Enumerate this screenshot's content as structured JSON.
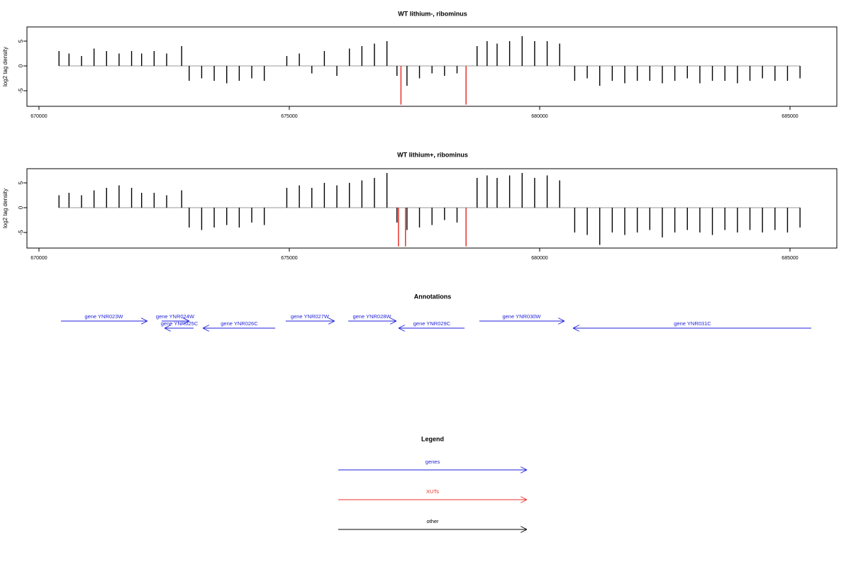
{
  "chart_data": [
    {
      "type": "bar",
      "title": "WT lithium-, ribominus",
      "ylabel": "log2 tag density",
      "xlim": [
        669760,
        685935
      ],
      "ylim": [
        -8.14,
        7.86
      ],
      "xticks": [
        670000,
        675000,
        680000,
        685000
      ],
      "yticks": [
        -5,
        0,
        5
      ],
      "series": [
        {
          "color": "#000000",
          "x": [
            670400,
            670600,
            670850,
            671100,
            671350,
            671600,
            671850,
            672050,
            672300,
            672550,
            672850,
            673000,
            673250,
            673500,
            673750,
            674000,
            674250,
            674500,
            674950,
            675200,
            675450,
            675700,
            675950,
            676200,
            676450,
            676700,
            676950,
            677150,
            677350,
            677600,
            677850,
            678100,
            678350,
            678750,
            678950,
            679150,
            679400,
            679650,
            679900,
            680150,
            680400,
            680700,
            680950,
            681200,
            681450,
            681700,
            681950,
            682200,
            682450,
            682700,
            682950,
            683200,
            683450,
            683700,
            683950,
            684200,
            684450,
            684700,
            684950,
            685200
          ],
          "values": [
            3,
            2.5,
            2,
            3.5,
            3,
            2.5,
            3,
            2.5,
            3,
            2.5,
            4,
            -3,
            -2.5,
            -3,
            -3.5,
            -3,
            -2.5,
            -3,
            2,
            2.5,
            -1.5,
            3,
            -2,
            3.5,
            4,
            4.5,
            5,
            -2,
            -4,
            -2.5,
            -1.5,
            -2,
            -1.5,
            4,
            5,
            4.5,
            5,
            6,
            5,
            5,
            4.5,
            -3,
            -2.5,
            -4,
            -3,
            -3.5,
            -3,
            -3,
            -3.5,
            -3,
            -2.5,
            -3.5,
            -3,
            -3,
            -3.5,
            -3,
            -2.5,
            -3,
            -3,
            -2.5
          ]
        },
        {
          "color": "#e8312a",
          "x": [
            677230,
            678530
          ],
          "values": [
            -7.8,
            -7.8
          ]
        }
      ]
    },
    {
      "type": "bar",
      "title": "WT lithium+, ribominus",
      "ylabel": "log2 tag density",
      "xlim": [
        669760,
        685935
      ],
      "ylim": [
        -8.14,
        7.86
      ],
      "xticks": [
        670000,
        675000,
        680000,
        685000
      ],
      "yticks": [
        -5,
        0,
        5
      ],
      "series": [
        {
          "color": "#000000",
          "x": [
            670400,
            670600,
            670850,
            671100,
            671350,
            671600,
            671850,
            672050,
            672300,
            672550,
            672850,
            673000,
            673250,
            673500,
            673750,
            674000,
            674250,
            674500,
            674950,
            675200,
            675450,
            675700,
            675950,
            676200,
            676450,
            676700,
            676950,
            677150,
            677350,
            677600,
            677850,
            678100,
            678350,
            678750,
            678950,
            679150,
            679400,
            679650,
            679900,
            680150,
            680400,
            680700,
            680950,
            681200,
            681450,
            681700,
            681950,
            682200,
            682450,
            682700,
            682950,
            683200,
            683450,
            683700,
            683950,
            684200,
            684450,
            684700,
            684950,
            685200
          ],
          "values": [
            2.5,
            3,
            2.5,
            3.5,
            4,
            4.5,
            4,
            3,
            3,
            2.5,
            3.5,
            -4,
            -4.5,
            -4,
            -3.5,
            -4,
            -3,
            -3.5,
            4,
            4.5,
            4,
            5,
            4.5,
            5,
            5.5,
            6,
            7,
            -3,
            -4.5,
            -4,
            -3.5,
            -2.5,
            -3,
            6,
            6.5,
            6,
            6.5,
            7,
            6,
            6.5,
            5.5,
            -5,
            -5.5,
            -7.5,
            -5,
            -5.5,
            -5,
            -4.5,
            -6,
            -5,
            -4.5,
            -5,
            -5.5,
            -4.5,
            -5,
            -4.5,
            -5,
            -4.5,
            -5,
            -4
          ]
        },
        {
          "color": "#e8312a",
          "x": [
            677180,
            677320,
            678530
          ],
          "values": [
            -7.8,
            -7.8,
            -7.8
          ]
        }
      ]
    }
  ],
  "annotations": {
    "title": "Annotations",
    "xlim": [
      669760,
      685935
    ],
    "color": "#1f1fdd",
    "genes": [
      {
        "label": "gene YNR023W",
        "start": 670439,
        "end": 672153,
        "strand": "+"
      },
      {
        "label": "gene YNR024W",
        "start": 672450,
        "end": 672989,
        "strand": "+"
      },
      {
        "label": "gene YNR025C",
        "start": 672521,
        "end": 673088,
        "strand": "-"
      },
      {
        "label": "gene YNR026C",
        "start": 673286,
        "end": 674717,
        "strand": "-"
      },
      {
        "label": "gene YNR027W",
        "start": 674929,
        "end": 675892,
        "strand": "+"
      },
      {
        "label": "gene YNR028W",
        "start": 676176,
        "end": 677125,
        "strand": "+"
      },
      {
        "label": "gene YNR029C",
        "start": 677195,
        "end": 678499,
        "strand": "-"
      },
      {
        "label": "gene YNR030W",
        "start": 678796,
        "end": 680482,
        "strand": "+"
      },
      {
        "label": "gene YNR031C",
        "start": 680680,
        "end": 685425,
        "strand": "-"
      }
    ]
  },
  "legend": {
    "title": "Legend",
    "entries": [
      {
        "label": "genes",
        "color": "#1f1fdd"
      },
      {
        "label": "XUTs",
        "color": "#e8312a"
      },
      {
        "label": "other",
        "color": "#000000"
      }
    ]
  }
}
